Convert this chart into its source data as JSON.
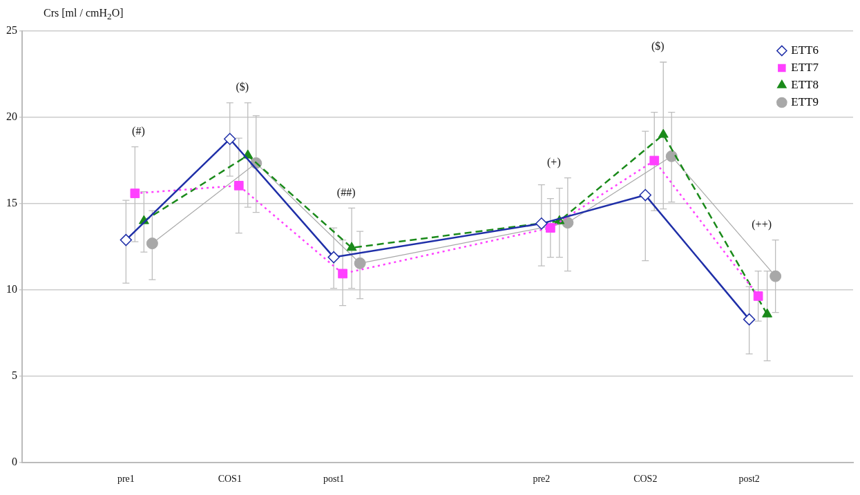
{
  "chart_data": {
    "type": "line",
    "ylabel": "Crs [ml / cmH$_{2}$O]",
    "categories": [
      null,
      "pre1",
      "COS1",
      "post1",
      null,
      "pre2",
      "COS2",
      "post2",
      null
    ],
    "series": [
      {
        "name": "ETT6",
        "color": "#1f2fa8",
        "marker": "diamond",
        "line_style": "solid",
        "values": [
          null,
          12.9,
          18.75,
          11.9,
          null,
          13.85,
          15.5,
          8.3,
          null
        ],
        "errors": [
          null,
          [
            10.4,
            15.2
          ],
          [
            16.6,
            20.85
          ],
          [
            10.1,
            13.6
          ],
          null,
          [
            11.4,
            16.1
          ],
          [
            11.7,
            19.2
          ],
          [
            6.3,
            10.2
          ],
          null
        ]
      },
      {
        "name": "ETT7",
        "color": "#ff40ff",
        "marker": "square",
        "line_style": "dotted",
        "values": [
          null,
          15.6,
          16.05,
          10.95,
          null,
          13.6,
          17.5,
          9.65,
          null
        ],
        "errors": [
          null,
          [
            12.8,
            18.3
          ],
          [
            13.3,
            18.8
          ],
          [
            9.1,
            12.9
          ],
          null,
          [
            11.9,
            15.3
          ],
          [
            14.6,
            20.3
          ],
          [
            8.2,
            11.1
          ],
          null
        ]
      },
      {
        "name": "ETT8",
        "color": "#1a8a1a",
        "marker": "triangle",
        "line_style": "dashed",
        "values": [
          null,
          14.0,
          17.8,
          12.45,
          null,
          14.0,
          19.0,
          8.6,
          null
        ],
        "errors": [
          null,
          [
            12.2,
            15.7
          ],
          [
            14.8,
            20.85
          ],
          [
            10.1,
            14.75
          ],
          null,
          [
            11.9,
            15.9
          ],
          [
            14.7,
            23.2
          ],
          [
            5.9,
            11.1
          ],
          null
        ]
      },
      {
        "name": "ETT9",
        "color": "#a8a8a8",
        "marker": "circle",
        "line_style": "solid",
        "values": [
          null,
          12.7,
          17.35,
          11.55,
          null,
          13.9,
          17.75,
          10.8,
          null
        ],
        "errors": [
          null,
          [
            10.6,
            14.6
          ],
          [
            14.5,
            20.1
          ],
          [
            9.5,
            13.4
          ],
          null,
          [
            11.1,
            16.5
          ],
          [
            15.1,
            20.3
          ],
          [
            8.7,
            12.9
          ],
          null
        ]
      }
    ],
    "annotations": [
      "(#)",
      "($)",
      "(##)",
      "(+)",
      "($)",
      "(++)"
    ],
    "ylim": [
      0,
      25
    ],
    "yticks": [
      0,
      5,
      10,
      15,
      20,
      25
    ],
    "grid": "y",
    "legend": "top right"
  }
}
